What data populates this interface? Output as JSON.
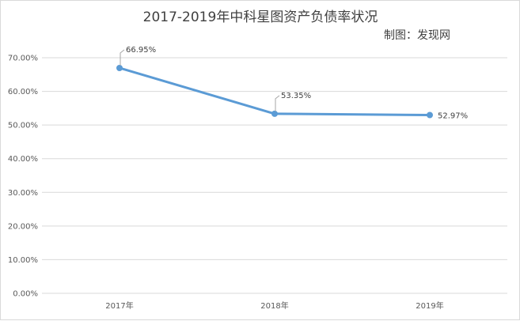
{
  "chart_data": {
    "type": "line",
    "title": "2017-2019年中科星图资产负债率状况",
    "credit": "制图：发现网",
    "xlabel": "",
    "ylabel": "",
    "categories": [
      "2017年",
      "2018年",
      "2019年"
    ],
    "series": [
      {
        "values": [
          66.95,
          53.35,
          52.97
        ],
        "data_labels": [
          "66.95%",
          "53.35%",
          "52.97%"
        ],
        "color": "#5b9bd5"
      }
    ],
    "ylim": [
      0,
      70
    ],
    "ytick_values": [
      0,
      10,
      20,
      30,
      40,
      50,
      60,
      70
    ],
    "ytick_labels": [
      "0.00%",
      "10.00%",
      "20.00%",
      "30.00%",
      "40.00%",
      "50.00%",
      "60.00%",
      "70.00%"
    ],
    "grid": true,
    "legend": "none"
  }
}
